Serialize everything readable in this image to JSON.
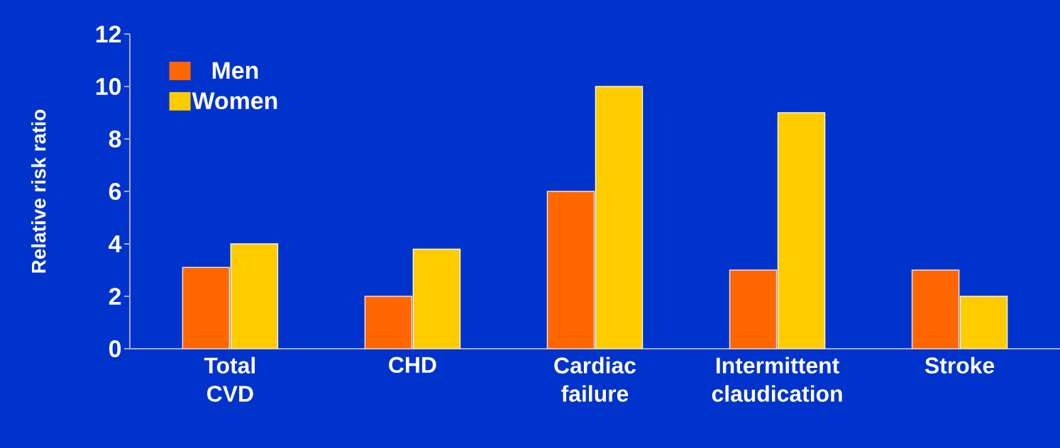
{
  "chart_data": {
    "type": "bar",
    "ylabel": "Relative risk ratio",
    "categories": [
      "Total CVD",
      "CHD",
      "Cardiac failure",
      "Intermittent claudication",
      "Stroke"
    ],
    "series": [
      {
        "name": "Men",
        "color": "#ff6600",
        "values": [
          3.1,
          2,
          6,
          3,
          3
        ]
      },
      {
        "name": "Women",
        "color": "#ffcc00",
        "values": [
          4,
          3.8,
          10,
          9,
          2
        ]
      }
    ],
    "ylim": [
      0,
      12
    ],
    "yticks": [
      0,
      2,
      4,
      6,
      8,
      10,
      12
    ],
    "legend": "top left"
  }
}
